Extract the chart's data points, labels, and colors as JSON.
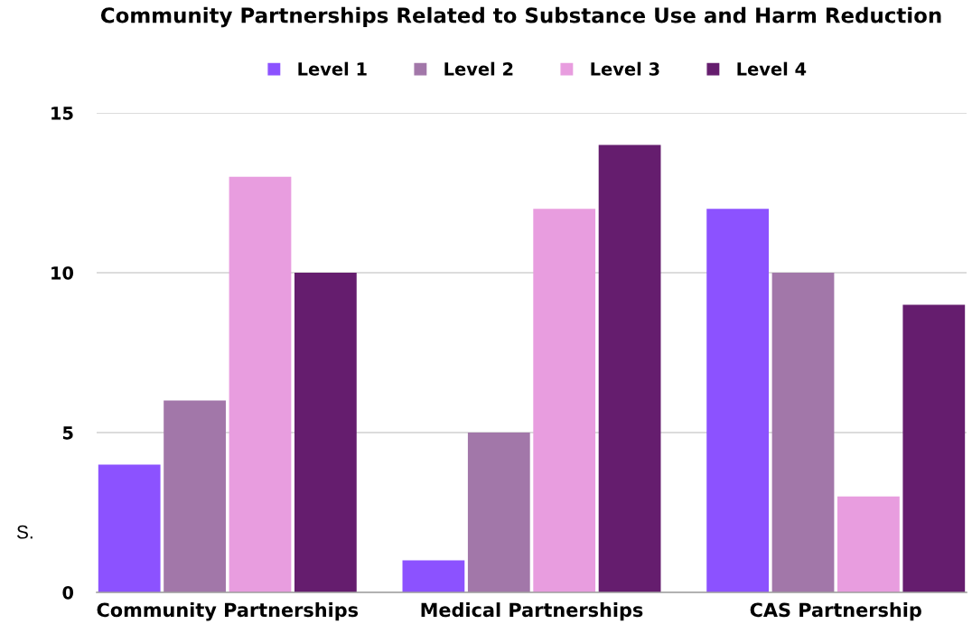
{
  "chart_data": {
    "type": "bar",
    "title": "Community Partnerships Related to Substance Use and Harm Reduction",
    "categories": [
      "Community Partnerships",
      "Medical Partnerships",
      "CAS Partnership"
    ],
    "series": [
      {
        "name": "Level 1",
        "color": "#8c52ff",
        "values": [
          4,
          1,
          12
        ]
      },
      {
        "name": "Level 2",
        "color": "#a277a9",
        "values": [
          6,
          5,
          10
        ]
      },
      {
        "name": "Level 3",
        "color": "#e89ddf",
        "values": [
          13,
          12,
          3
        ]
      },
      {
        "name": "Level 4",
        "color": "#651d6e",
        "values": [
          10,
          14,
          9
        ]
      }
    ],
    "ylim": [
      0,
      15
    ],
    "yticks": [
      0,
      5,
      10,
      15
    ],
    "grid": "y",
    "legend": "top",
    "annotations": [
      "S."
    ]
  }
}
